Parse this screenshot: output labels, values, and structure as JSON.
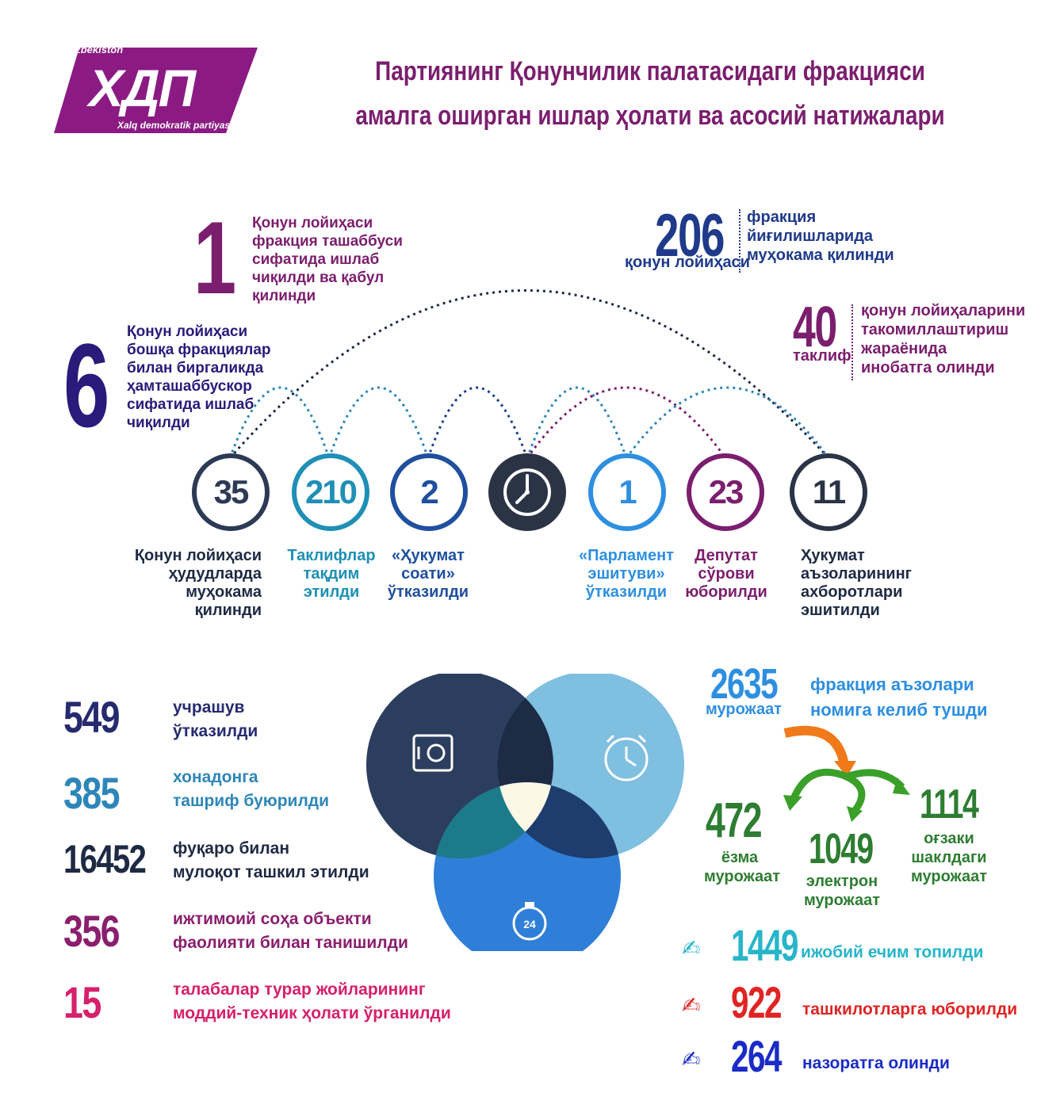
{
  "logo": {
    "top_text": "O'zbekiston",
    "main_text": "ХДП",
    "bottom_text": "Xalq demokratik partiyasi",
    "color": "#8b1a83"
  },
  "title": {
    "line1": "Партиянинг Қонунчилик палатасидаги фракцияси",
    "line2": "амалга оширган ишлар ҳолати ва асосий натижалари",
    "color": "#7b1e6e"
  },
  "top_stats": {
    "one": {
      "number": "1",
      "lines": [
        "Қонун лойиҳаси",
        "фракция ташаббуси",
        "сифатида ишлаб",
        "чиқилди ва қабул",
        "қилинди"
      ],
      "color": "#7b1e6e"
    },
    "six": {
      "number": "6",
      "lines": [
        "Қонун лойиҳаси",
        "бошқа фракциялар",
        "билан биргаликда",
        "ҳамташаббускор",
        "сифатида ишлаб",
        "чиқилди"
      ],
      "color": "#2a1a7a"
    },
    "two_oh_six": {
      "number": "206",
      "sub": "қонун лойиҳаси",
      "lines": [
        "фракция",
        "йиғилишларида",
        "муҳокама қилинди"
      ],
      "color": "#1f3a8a"
    },
    "forty": {
      "number": "40",
      "sub": "таклиф",
      "lines": [
        "қонун лойиҳаларини",
        "такомиллаштириш",
        "жараёнида",
        "инобатга олинди"
      ],
      "color": "#7b1e6e"
    }
  },
  "circles": [
    {
      "value": "35",
      "color": "#2d3a55",
      "label_lines": [
        "Қонун лойиҳаси",
        "ҳудудларда",
        "муҳокама қилинди"
      ],
      "label_color": "#1e2a44"
    },
    {
      "value": "210",
      "color": "#1f8fb5",
      "label_lines": [
        "Таклифлар",
        "тақдим",
        "этилди"
      ],
      "label_color": "#1f8fb5"
    },
    {
      "value": "2",
      "color": "#1f4f9e",
      "label_lines": [
        "«Ҳукумат",
        "соати»",
        "ўтказилди"
      ],
      "label_color": "#1f4f9e"
    },
    {
      "value": "",
      "icon": "clock-icon",
      "color": "#2b3445",
      "label_lines": [],
      "label_color": "#2b3445"
    },
    {
      "value": "1",
      "color": "#2e8fe0",
      "label_lines": [
        "«Парламент",
        "эшитуви»",
        "ўтказилди"
      ],
      "label_color": "#2e8fe0"
    },
    {
      "value": "23",
      "color": "#7b1e6e",
      "label_lines": [
        "Депутат",
        "сўрови",
        "юборилди"
      ],
      "label_color": "#7b1e6e"
    },
    {
      "value": "11",
      "color": "#2b3445",
      "label_lines": [
        "Ҳукумат",
        "аъзоларининг",
        "ахборотлари",
        "эшитилди"
      ],
      "label_color": "#1e2a44"
    }
  ],
  "left_stats": [
    {
      "number": "549",
      "text_lines": [
        "учрашув",
        "ўтказилди"
      ],
      "color": "#262a6e"
    },
    {
      "number": "385",
      "text_lines": [
        "хонадонга",
        "ташриф буюрилди"
      ],
      "color": "#2e86b8"
    },
    {
      "number": "16452",
      "text_lines": [
        "фуқаро билан",
        "мулоқот ташкил этилди"
      ],
      "color": "#1e2a44"
    },
    {
      "number": "356",
      "text_lines": [
        "ижтимоий соҳа объекти",
        "фаолияти билан танишилди"
      ],
      "color": "#8a1f6e"
    },
    {
      "number": "15",
      "text_lines": [
        "талабалар турар жойларининг",
        "моддий-техник ҳолати ўрганилди"
      ],
      "color": "#d6206a"
    }
  ],
  "venn": {
    "icons": [
      "safe-icon",
      "alarm-clock-icon",
      "stopwatch-24-icon"
    ],
    "stopwatch_label": "24",
    "colors": {
      "dark": "#2c3e5e",
      "light": "#7fbfe0",
      "blue": "#2f7fd8"
    }
  },
  "appeals": {
    "total": {
      "number": "2635",
      "sub": "мурожаат",
      "text_lines": [
        "фракция аъзолари",
        "номига келиб тушди"
      ],
      "color": "#2e8fe0"
    },
    "written": {
      "number": "472",
      "lines": [
        "ёзма",
        "мурожаат"
      ],
      "color": "#2e7d32"
    },
    "electronic": {
      "number": "1049",
      "lines": [
        "электрон",
        "мурожаат"
      ],
      "color": "#2e7d32"
    },
    "oral": {
      "number": "1114",
      "lines": [
        "оғзаки",
        "шаклдаги",
        "мурожаат"
      ],
      "color": "#2e7d32"
    },
    "results": [
      {
        "number": "1449",
        "text": "ижобий ечим топилди",
        "color": "#27b5c9",
        "icon": "writing-hand-icon"
      },
      {
        "number": "922",
        "text": "ташкилотларга юборилди",
        "color": "#e02424",
        "icon": "writing-hand-icon"
      },
      {
        "number": "264",
        "text": "назоратга олинди",
        "color": "#1a2bc7",
        "icon": "writing-hand-icon"
      }
    ]
  }
}
